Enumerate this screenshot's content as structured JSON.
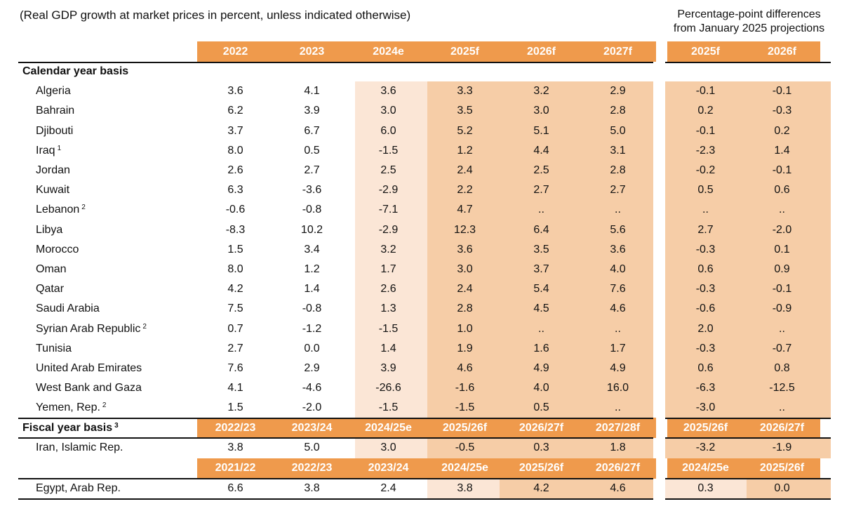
{
  "subtitle": "(Real GDP growth at market prices in percent, unless indicated otherwise)",
  "pp_title_line1": "Percentage-point differences",
  "pp_title_line2": "from January 2025 projections",
  "colors": {
    "header": "#ef9a4c",
    "estimate_shade": "#fbe6d6",
    "forecast_shade": "#f6cda7",
    "rule": "#111111"
  },
  "header_years": [
    "2022",
    "2023",
    "2024e",
    "2025f",
    "2026f",
    "2027f"
  ],
  "header_pp": [
    "2025f",
    "2026f"
  ],
  "calendar_label": "Calendar year basis",
  "calendar_rows": [
    {
      "country": "Algeria",
      "note": "",
      "values": [
        "3.6",
        "4.1",
        "3.6",
        "3.3",
        "3.2",
        "2.9"
      ],
      "diffs": [
        "-0.1",
        "-0.1"
      ]
    },
    {
      "country": "Bahrain",
      "note": "",
      "values": [
        "6.2",
        "3.9",
        "3.0",
        "3.5",
        "3.0",
        "2.8"
      ],
      "diffs": [
        "0.2",
        "-0.3"
      ]
    },
    {
      "country": "Djibouti",
      "note": "",
      "values": [
        "3.7",
        "6.7",
        "6.0",
        "5.2",
        "5.1",
        "5.0"
      ],
      "diffs": [
        "-0.1",
        "0.2"
      ]
    },
    {
      "country": "Iraq",
      "note": "1",
      "values": [
        "8.0",
        "0.5",
        "-1.5",
        "1.2",
        "4.4",
        "3.1"
      ],
      "diffs": [
        "-2.3",
        "1.4"
      ]
    },
    {
      "country": "Jordan",
      "note": "",
      "values": [
        "2.6",
        "2.7",
        "2.5",
        "2.4",
        "2.5",
        "2.8"
      ],
      "diffs": [
        "-0.2",
        "-0.1"
      ]
    },
    {
      "country": "Kuwait",
      "note": "",
      "values": [
        "6.3",
        "-3.6",
        "-2.9",
        "2.2",
        "2.7",
        "2.7"
      ],
      "diffs": [
        "0.5",
        "0.6"
      ]
    },
    {
      "country": "Lebanon",
      "note": "2",
      "values": [
        "-0.6",
        "-0.8",
        "-7.1",
        "4.7",
        "..",
        ".."
      ],
      "diffs": [
        "..",
        ".."
      ]
    },
    {
      "country": "Libya",
      "note": "",
      "values": [
        "-8.3",
        "10.2",
        "-2.9",
        "12.3",
        "6.4",
        "5.6"
      ],
      "diffs": [
        "2.7",
        "-2.0"
      ]
    },
    {
      "country": "Morocco",
      "note": "",
      "values": [
        "1.5",
        "3.4",
        "3.2",
        "3.6",
        "3.5",
        "3.6"
      ],
      "diffs": [
        "-0.3",
        "0.1"
      ]
    },
    {
      "country": "Oman",
      "note": "",
      "values": [
        "8.0",
        "1.2",
        "1.7",
        "3.0",
        "3.7",
        "4.0"
      ],
      "diffs": [
        "0.6",
        "0.9"
      ]
    },
    {
      "country": "Qatar",
      "note": "",
      "values": [
        "4.2",
        "1.4",
        "2.6",
        "2.4",
        "5.4",
        "7.6"
      ],
      "diffs": [
        "-0.3",
        "-0.1"
      ]
    },
    {
      "country": "Saudi Arabia",
      "note": "",
      "values": [
        "7.5",
        "-0.8",
        "1.3",
        "2.8",
        "4.5",
        "4.6"
      ],
      "diffs": [
        "-0.6",
        "-0.9"
      ]
    },
    {
      "country": "Syrian Arab Republic",
      "note": "2",
      "values": [
        "0.7",
        "-1.2",
        "-1.5",
        "1.0",
        "..",
        ".."
      ],
      "diffs": [
        "2.0",
        ".."
      ]
    },
    {
      "country": "Tunisia",
      "note": "",
      "values": [
        "2.7",
        "0.0",
        "1.4",
        "1.9",
        "1.6",
        "1.7"
      ],
      "diffs": [
        "-0.3",
        "-0.7"
      ]
    },
    {
      "country": "United Arab Emirates",
      "note": "",
      "values": [
        "7.6",
        "2.9",
        "3.9",
        "4.6",
        "4.9",
        "4.9"
      ],
      "diffs": [
        "0.6",
        "0.8"
      ]
    },
    {
      "country": "West Bank and Gaza",
      "note": "",
      "values": [
        "4.1",
        "-4.6",
        "-26.6",
        "-1.6",
        "4.0",
        "16.0"
      ],
      "diffs": [
        "-6.3",
        "-12.5"
      ]
    },
    {
      "country": "Yemen, Rep.",
      "note": "2",
      "values": [
        "1.5",
        "-2.0",
        "-1.5",
        "-1.5",
        "0.5",
        ".."
      ],
      "diffs": [
        "-3.0",
        ".."
      ]
    }
  ],
  "fiscal_label": "Fiscal year basis",
  "fiscal_note": "3",
  "fiscal_header1": [
    "2022/23",
    "2023/24",
    "2024/25e",
    "2025/26f",
    "2026/27f",
    "2027/28f"
  ],
  "fiscal_header1_pp": [
    "2025/26f",
    "2026/27f"
  ],
  "iran": {
    "country": "Iran, Islamic Rep.",
    "values": [
      "3.8",
      "5.0",
      "3.0",
      "-0.5",
      "0.3",
      "1.8"
    ],
    "diffs": [
      "-3.2",
      "-1.9"
    ]
  },
  "fiscal_header2": [
    "2021/22",
    "2022/23",
    "2023/24",
    "2024/25e",
    "2025/26f",
    "2026/27f"
  ],
  "fiscal_header2_pp": [
    "2024/25e",
    "2025/26f"
  ],
  "egypt": {
    "country": "Egypt, Arab Rep.",
    "values": [
      "6.6",
      "3.8",
      "2.4",
      "3.8",
      "4.2",
      "4.6"
    ],
    "diffs": [
      "0.3",
      "0.0"
    ]
  }
}
